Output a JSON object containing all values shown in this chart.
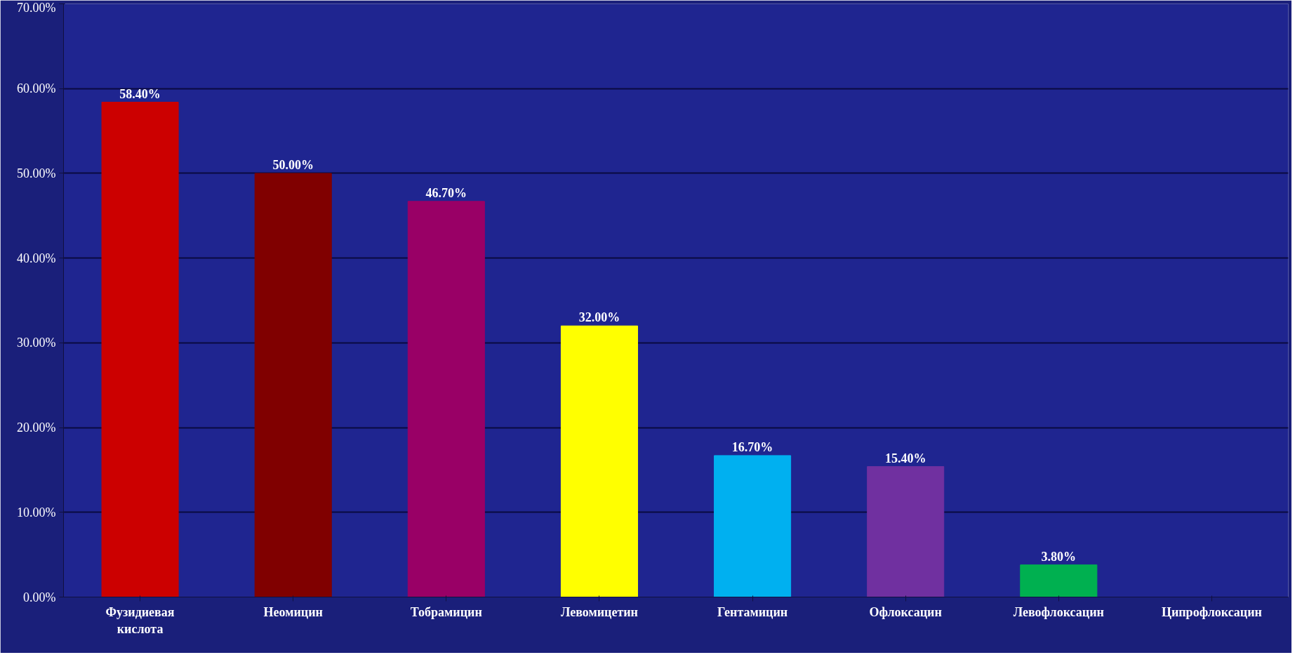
{
  "chart_data": {
    "type": "bar",
    "categories": [
      "Фузидиевая\nкислота",
      "Неомицин",
      "Тобрамицин",
      "Левомицетин",
      "Гентамицин",
      "Офлоксацин",
      "Левофлоксацин",
      "Ципрофлоксацин"
    ],
    "values": [
      58.4,
      50.0,
      46.7,
      32.0,
      16.7,
      15.4,
      3.8,
      0
    ],
    "colors": [
      "#cc0000",
      "#800000",
      "#990066",
      "#ffff00",
      "#00b0f0",
      "#7030a0",
      "#00b050",
      "#0070c0"
    ],
    "value_labels": [
      "58.40%",
      "50.00%",
      "46.70%",
      "32.00%",
      "16.70%",
      "15.40%",
      "3.80%",
      null
    ],
    "ylim": [
      0,
      70
    ],
    "yticks": [
      {
        "value": 0,
        "label": "0.00%"
      },
      {
        "value": 10,
        "label": "10.00%"
      },
      {
        "value": 20,
        "label": "20.00%"
      },
      {
        "value": 30,
        "label": "30.00%"
      },
      {
        "value": 40,
        "label": "40.00%"
      },
      {
        "value": 50,
        "label": "50.00%"
      },
      {
        "value": 60,
        "label": "60.00%"
      },
      {
        "value": 70,
        "label": "70.00%"
      }
    ],
    "grid": "y"
  }
}
